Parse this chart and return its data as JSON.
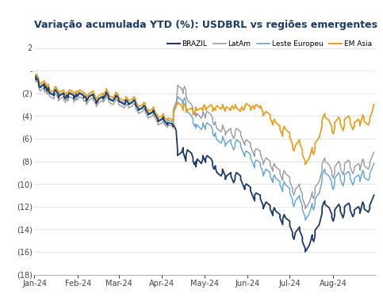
{
  "title": "Variação acumulada YTD (%): USDBRL vs regiões emergentes",
  "title_color": "#1a3a6b",
  "background_color": "#ffffff",
  "ylim": [
    -18,
    3
  ],
  "series": {
    "BRAZIL": {
      "color": "#1a3a6b",
      "linewidth": 1.3
    },
    "LatAm": {
      "color": "#999999",
      "linewidth": 1.0
    },
    "Leste Europeu": {
      "color": "#5BA3DC",
      "linewidth": 1.0
    },
    "EM Asia": {
      "color": "#E8A020",
      "linewidth": 1.3
    }
  },
  "brazil": [
    -0.5,
    -0.8,
    -0.7,
    -1.0,
    -1.3,
    -1.5,
    -1.2,
    -1.6,
    -1.4,
    -1.8,
    -1.5,
    -1.7,
    -2.0,
    -2.2,
    -1.9,
    -1.7,
    -1.9,
    -2.1,
    -2.4,
    -2.2,
    -2.0,
    -2.3,
    -2.5,
    -2.2,
    -2.4,
    -2.2,
    -2.0,
    -2.2,
    -2.5,
    -2.3,
    -2.1,
    -2.3,
    -2.2,
    -2.0,
    -2.2,
    -2.4,
    -2.3,
    -2.5,
    -2.7,
    -2.5,
    -2.3,
    -2.1,
    -2.3,
    -2.5,
    -2.7,
    -2.9,
    -2.7,
    -2.5,
    -2.3,
    -2.5,
    -2.3,
    -2.1,
    -1.9,
    -2.1,
    -2.3,
    -2.5,
    -2.7,
    -2.5,
    -2.3,
    -2.2,
    -2.3,
    -2.5,
    -2.7,
    -2.9,
    -3.0,
    -2.8,
    -2.6,
    -2.7,
    -2.9,
    -3.0,
    -2.8,
    -2.6,
    -2.8,
    -3.0,
    -3.2,
    -3.4,
    -3.5,
    -3.3,
    -3.1,
    -3.2,
    -3.4,
    -3.6,
    -3.8,
    -3.9,
    -3.7,
    -3.5,
    -3.7,
    -3.9,
    -4.1,
    -4.3,
    -4.5,
    -4.3,
    -4.1,
    -4.3,
    -4.5,
    -4.7,
    -4.8,
    -4.6,
    -4.7,
    -4.9,
    -4.8,
    -5.0,
    -5.3,
    -7.0,
    -7.5,
    -7.2,
    -6.8,
    -7.2,
    -7.6,
    -8.0,
    -7.5,
    -7.0,
    -7.3,
    -7.7,
    -8.0,
    -8.3,
    -8.0,
    -8.5,
    -7.8,
    -8.2,
    -7.8,
    -7.5,
    -7.8,
    -8.1,
    -7.8,
    -7.5,
    -7.8,
    -8.1,
    -8.4,
    -8.7,
    -8.4,
    -8.6,
    -9.0,
    -9.3,
    -9.0,
    -8.7,
    -9.0,
    -9.3,
    -9.6,
    -9.3,
    -9.0,
    -9.3,
    -9.6,
    -9.9,
    -9.6,
    -9.3,
    -9.0,
    -9.3,
    -9.6,
    -9.9,
    -10.2,
    -10.5,
    -10.2,
    -10.0,
    -10.3,
    -10.6,
    -10.9,
    -11.2,
    -11.5,
    -11.0,
    -10.8,
    -11.0,
    -11.3,
    -11.6,
    -11.9,
    -12.2,
    -11.9,
    -11.6,
    -11.9,
    -12.2,
    -12.5,
    -12.8,
    -12.4,
    -12.1,
    -12.4,
    -12.7,
    -13.0,
    -13.3,
    -13.6,
    -13.1,
    -12.7,
    -13.0,
    -13.3,
    -13.7,
    -14.0,
    -14.3,
    -14.6,
    -14.9,
    -14.3,
    -13.8,
    -14.1,
    -14.4,
    -14.7,
    -15.1,
    -15.4,
    -15.7,
    -16.0,
    -15.4,
    -15.0,
    -14.5,
    -14.8,
    -15.1,
    -14.6,
    -14.1,
    -13.6,
    -13.1,
    -12.6,
    -12.1,
    -11.7,
    -11.5,
    -11.8,
    -12.1,
    -12.4,
    -12.7,
    -13.0,
    -13.3,
    -12.8,
    -12.3,
    -11.8,
    -12.1,
    -12.4,
    -12.7,
    -13.0,
    -12.5,
    -12.0,
    -11.7,
    -12.0,
    -12.3,
    -12.6,
    -12.9,
    -12.6,
    -12.3,
    -12.0,
    -12.3,
    -12.6,
    -12.1,
    -11.6,
    -11.9,
    -12.2,
    -12.5,
    -12.2,
    -11.9,
    -11.6,
    -11.3,
    -11.0
  ],
  "latam": [
    -0.8,
    -1.0,
    -0.9,
    -1.2,
    -1.5,
    -1.8,
    -1.5,
    -1.9,
    -1.7,
    -2.1,
    -1.8,
    -2.0,
    -2.3,
    -2.5,
    -2.2,
    -2.0,
    -2.2,
    -2.4,
    -2.7,
    -2.5,
    -2.3,
    -2.6,
    -2.8,
    -2.5,
    -2.7,
    -2.5,
    -2.3,
    -2.5,
    -2.8,
    -2.6,
    -2.4,
    -2.6,
    -2.5,
    -2.3,
    -2.5,
    -2.7,
    -2.6,
    -2.8,
    -3.0,
    -2.8,
    -2.6,
    -2.4,
    -2.6,
    -2.8,
    -3.0,
    -3.2,
    -3.0,
    -2.8,
    -2.6,
    -2.8,
    -2.6,
    -2.4,
    -2.2,
    -2.4,
    -2.6,
    -2.8,
    -3.0,
    -2.8,
    -2.6,
    -2.5,
    -2.6,
    -2.8,
    -3.0,
    -3.2,
    -3.3,
    -3.1,
    -2.9,
    -3.0,
    -3.2,
    -3.3,
    -3.1,
    -2.9,
    -3.1,
    -3.3,
    -3.5,
    -3.7,
    -3.8,
    -3.6,
    -3.4,
    -3.5,
    -3.7,
    -3.9,
    -4.1,
    -4.2,
    -4.0,
    -3.8,
    -4.0,
    -4.2,
    -4.4,
    -4.6,
    -4.8,
    -4.6,
    -4.4,
    -4.6,
    -4.8,
    -4.9,
    -5.0,
    -4.8,
    -4.9,
    -5.1,
    -3.8,
    -3.5,
    -3.2,
    -1.5,
    -1.3,
    -1.6,
    -2.0,
    -1.7,
    -1.4,
    -1.8,
    -2.2,
    -2.6,
    -3.0,
    -3.3,
    -3.6,
    -3.9,
    -3.7,
    -4.1,
    -3.8,
    -4.2,
    -3.9,
    -3.6,
    -3.9,
    -4.2,
    -3.9,
    -3.6,
    -3.9,
    -4.2,
    -4.5,
    -4.8,
    -4.5,
    -4.7,
    -5.1,
    -5.4,
    -5.1,
    -4.8,
    -5.1,
    -5.4,
    -5.7,
    -5.4,
    -5.1,
    -5.4,
    -5.7,
    -6.0,
    -5.7,
    -5.4,
    -5.1,
    -5.4,
    -5.7,
    -6.0,
    -6.3,
    -6.6,
    -6.3,
    -6.1,
    -6.4,
    -6.7,
    -7.0,
    -7.3,
    -7.6,
    -7.1,
    -6.9,
    -7.1,
    -7.4,
    -7.7,
    -8.0,
    -8.3,
    -8.0,
    -7.7,
    -8.0,
    -8.3,
    -8.6,
    -8.9,
    -8.5,
    -8.2,
    -8.5,
    -8.8,
    -9.1,
    -9.4,
    -9.7,
    -9.2,
    -8.8,
    -9.1,
    -9.4,
    -9.8,
    -10.1,
    -10.4,
    -10.7,
    -11.0,
    -10.5,
    -10.0,
    -10.3,
    -10.6,
    -10.9,
    -11.3,
    -11.6,
    -11.9,
    -12.2,
    -11.6,
    -11.2,
    -10.7,
    -11.0,
    -11.3,
    -10.8,
    -10.3,
    -9.8,
    -9.3,
    -8.8,
    -8.3,
    -7.9,
    -7.7,
    -8.0,
    -8.3,
    -8.6,
    -8.9,
    -9.2,
    -9.5,
    -9.0,
    -8.5,
    -8.0,
    -8.3,
    -8.6,
    -8.9,
    -9.2,
    -8.7,
    -8.2,
    -7.9,
    -8.2,
    -8.5,
    -8.8,
    -9.1,
    -8.8,
    -8.5,
    -8.2,
    -8.5,
    -8.8,
    -8.3,
    -7.8,
    -8.1,
    -8.4,
    -8.7,
    -8.4,
    -8.1,
    -7.8,
    -7.5,
    -7.2
  ],
  "leste_europeu": [
    -0.5,
    -0.7,
    -0.6,
    -0.9,
    -1.2,
    -1.4,
    -1.1,
    -1.5,
    -1.3,
    -1.7,
    -1.4,
    -1.6,
    -1.9,
    -2.1,
    -1.8,
    -1.6,
    -1.8,
    -2.0,
    -2.3,
    -2.1,
    -1.9,
    -2.2,
    -2.4,
    -2.1,
    -2.3,
    -2.1,
    -1.9,
    -2.1,
    -2.4,
    -2.2,
    -2.0,
    -2.2,
    -2.1,
    -1.9,
    -2.1,
    -2.3,
    -2.2,
    -2.4,
    -2.6,
    -2.4,
    -2.2,
    -2.0,
    -2.2,
    -2.4,
    -2.6,
    -2.8,
    -2.6,
    -2.4,
    -2.2,
    -2.4,
    -2.2,
    -2.0,
    -1.8,
    -2.0,
    -2.2,
    -2.4,
    -2.6,
    -2.4,
    -2.2,
    -2.1,
    -2.2,
    -2.4,
    -2.6,
    -2.8,
    -2.9,
    -2.7,
    -2.5,
    -2.6,
    -2.8,
    -2.9,
    -2.7,
    -2.5,
    -2.7,
    -2.9,
    -3.1,
    -3.3,
    -3.4,
    -3.2,
    -3.0,
    -3.1,
    -3.3,
    -3.5,
    -3.7,
    -3.8,
    -3.6,
    -3.4,
    -3.6,
    -3.8,
    -4.0,
    -4.2,
    -4.4,
    -4.2,
    -4.0,
    -4.2,
    -4.4,
    -4.5,
    -4.6,
    -4.4,
    -4.5,
    -4.7,
    -3.4,
    -3.1,
    -2.8,
    -2.5,
    -2.3,
    -2.6,
    -3.0,
    -2.7,
    -2.4,
    -2.8,
    -3.2,
    -3.6,
    -4.0,
    -4.3,
    -4.6,
    -4.9,
    -4.7,
    -5.1,
    -4.8,
    -5.2,
    -4.9,
    -4.6,
    -4.9,
    -5.2,
    -4.9,
    -4.6,
    -4.9,
    -5.2,
    -5.5,
    -5.8,
    -5.5,
    -5.7,
    -6.1,
    -6.4,
    -6.1,
    -5.8,
    -6.1,
    -6.4,
    -6.7,
    -6.4,
    -6.1,
    -6.4,
    -6.7,
    -7.0,
    -6.7,
    -6.4,
    -6.1,
    -6.4,
    -6.7,
    -7.0,
    -7.3,
    -7.6,
    -7.3,
    -7.1,
    -7.4,
    -7.7,
    -8.0,
    -8.3,
    -8.6,
    -8.1,
    -7.9,
    -8.1,
    -8.4,
    -8.7,
    -9.0,
    -9.3,
    -9.0,
    -8.7,
    -9.0,
    -9.3,
    -9.6,
    -9.9,
    -9.5,
    -9.2,
    -9.5,
    -9.8,
    -10.1,
    -10.4,
    -10.7,
    -10.2,
    -9.8,
    -10.1,
    -10.4,
    -10.8,
    -11.1,
    -11.4,
    -11.7,
    -12.0,
    -11.5,
    -11.0,
    -11.3,
    -11.6,
    -11.9,
    -12.3,
    -12.6,
    -12.9,
    -13.2,
    -12.6,
    -12.2,
    -11.7,
    -12.0,
    -12.3,
    -11.8,
    -11.3,
    -10.8,
    -10.3,
    -9.8,
    -9.3,
    -8.9,
    -8.7,
    -9.0,
    -9.3,
    -9.6,
    -9.9,
    -10.2,
    -10.5,
    -10.0,
    -9.5,
    -9.0,
    -9.3,
    -9.6,
    -9.9,
    -10.2,
    -9.7,
    -9.2,
    -8.9,
    -9.2,
    -9.5,
    -9.8,
    -10.1,
    -9.8,
    -9.5,
    -9.2,
    -9.5,
    -9.8,
    -9.3,
    -8.8,
    -9.1,
    -9.4,
    -9.7,
    -9.4,
    -9.1,
    -8.8,
    -8.5,
    -8.2
  ],
  "em_asia": [
    -0.3,
    -0.5,
    -0.4,
    -0.7,
    -1.0,
    -1.2,
    -0.9,
    -1.3,
    -1.1,
    -1.5,
    -1.2,
    -1.4,
    -1.7,
    -1.9,
    -1.6,
    -1.4,
    -1.6,
    -1.8,
    -2.1,
    -1.9,
    -1.7,
    -2.0,
    -2.2,
    -1.9,
    -2.1,
    -1.9,
    -1.7,
    -1.9,
    -2.2,
    -2.0,
    -1.8,
    -2.0,
    -1.9,
    -1.7,
    -1.9,
    -2.1,
    -2.0,
    -2.2,
    -2.4,
    -2.2,
    -2.0,
    -1.8,
    -2.0,
    -2.2,
    -2.4,
    -2.6,
    -2.4,
    -2.2,
    -2.0,
    -2.2,
    -2.0,
    -1.8,
    -1.6,
    -1.8,
    -2.0,
    -2.2,
    -2.4,
    -2.2,
    -2.0,
    -1.9,
    -2.0,
    -2.2,
    -2.4,
    -2.6,
    -2.7,
    -2.5,
    -2.3,
    -2.4,
    -2.6,
    -2.7,
    -2.5,
    -2.3,
    -2.5,
    -2.7,
    -2.9,
    -3.1,
    -3.2,
    -3.0,
    -2.8,
    -2.9,
    -3.1,
    -3.3,
    -3.5,
    -3.6,
    -3.4,
    -3.2,
    -3.4,
    -3.6,
    -3.8,
    -4.0,
    -4.2,
    -4.0,
    -3.8,
    -4.0,
    -4.2,
    -4.3,
    -4.4,
    -4.2,
    -4.3,
    -4.5,
    -3.6,
    -3.3,
    -3.0,
    -3.0,
    -2.8,
    -3.1,
    -3.5,
    -3.2,
    -2.9,
    -3.3,
    -3.7,
    -3.5,
    -3.3,
    -3.6,
    -3.9,
    -3.7,
    -3.5,
    -3.2,
    -3.5,
    -3.3,
    -3.5,
    -3.3,
    -3.0,
    -3.3,
    -3.5,
    -3.3,
    -3.0,
    -3.3,
    -3.6,
    -3.3,
    -3.5,
    -3.3,
    -3.1,
    -3.4,
    -3.2,
    -3.0,
    -3.3,
    -3.6,
    -3.4,
    -3.2,
    -3.5,
    -3.3,
    -3.1,
    -3.4,
    -3.2,
    -3.0,
    -3.3,
    -3.6,
    -3.4,
    -3.2,
    -3.5,
    -3.3,
    -3.1,
    -2.9,
    -3.2,
    -3.5,
    -3.3,
    -3.1,
    -3.4,
    -3.2,
    -3.0,
    -3.3,
    -3.1,
    -3.4,
    -3.7,
    -4.0,
    -3.8,
    -3.6,
    -3.9,
    -4.2,
    -4.5,
    -4.8,
    -4.5,
    -4.3,
    -4.6,
    -4.9,
    -5.2,
    -5.5,
    -5.8,
    -5.3,
    -4.9,
    -5.2,
    -5.5,
    -5.9,
    -6.2,
    -6.5,
    -6.8,
    -7.1,
    -6.6,
    -6.1,
    -6.4,
    -6.7,
    -7.0,
    -7.4,
    -7.7,
    -8.0,
    -8.3,
    -7.7,
    -7.3,
    -6.8,
    -7.1,
    -7.4,
    -6.9,
    -6.4,
    -5.9,
    -5.4,
    -4.9,
    -4.4,
    -4.0,
    -3.8,
    -4.1,
    -4.4,
    -4.7,
    -5.0,
    -5.3,
    -5.6,
    -5.1,
    -4.6,
    -4.1,
    -4.4,
    -4.7,
    -5.0,
    -5.3,
    -4.8,
    -4.3,
    -4.0,
    -4.3,
    -4.6,
    -4.9,
    -5.2,
    -4.9,
    -4.6,
    -4.3,
    -4.6,
    -4.9,
    -4.4,
    -3.9,
    -4.2,
    -4.5,
    -4.8,
    -4.5,
    -4.2,
    -3.9,
    -3.5,
    -3.0
  ]
}
